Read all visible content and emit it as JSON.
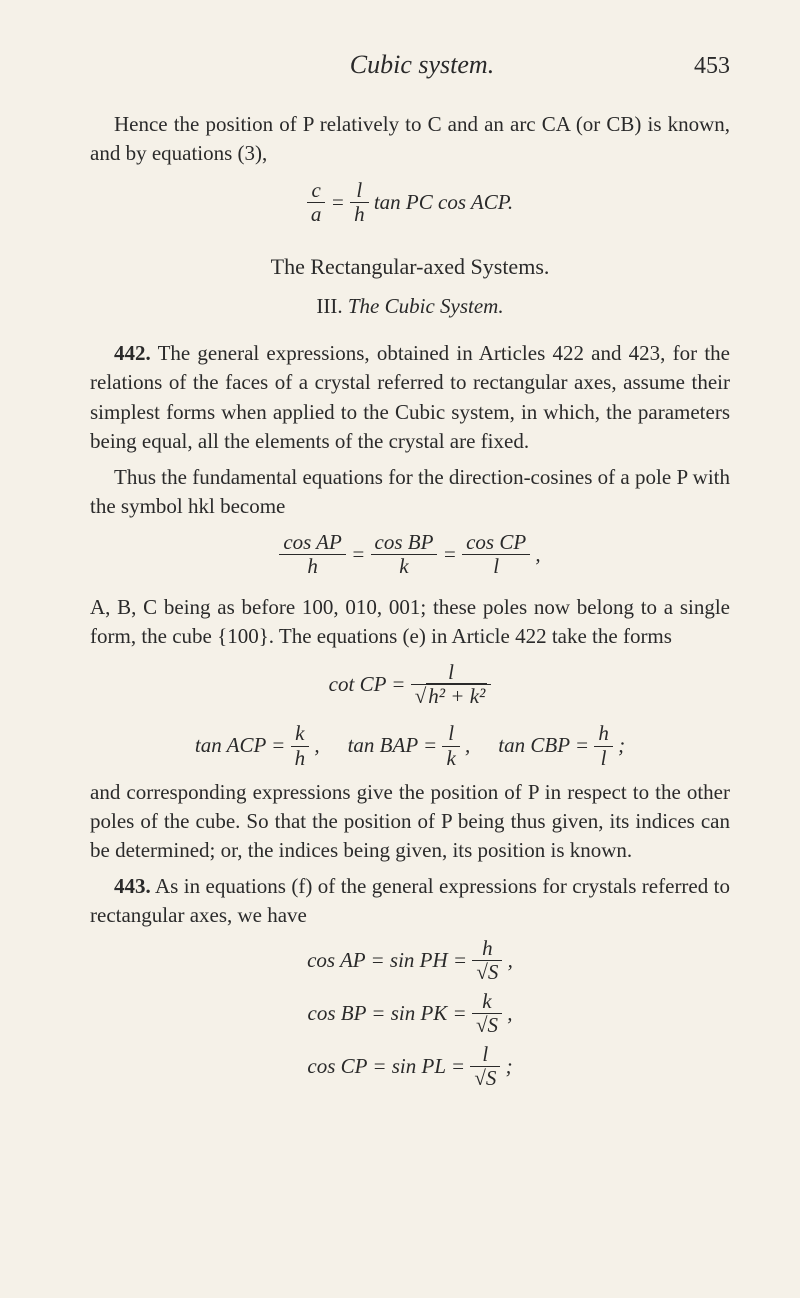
{
  "header": {
    "running_title": "Cubic system.",
    "page_number": "453"
  },
  "p1": "Hence the position of P relatively to C and an arc CA (or CB) is known, and by equations (3),",
  "eq1": {
    "lhs_num": "c",
    "lhs_den": "a",
    "rhs_num": "l",
    "rhs_den": "h",
    "tail": " tan PC cos ACP."
  },
  "section_title": "The Rectangular-axed Systems.",
  "subsection_prefix": "III. ",
  "subsection_ital": "The Cubic System.",
  "p442a_num": "442.",
  "p442a": " The general expressions, obtained in Articles 422 and 423, for the relations of the faces of a crystal referred to rectangular axes, assume their simplest forms when applied to the Cubic system, in which, the parameters being equal, all the elements of the crystal are fixed.",
  "p442b": "Thus the fundamental equations for the direction-cosines of a pole P with the symbol hkl become",
  "eq2": {
    "t1_num": "cos AP",
    "t1_den": "h",
    "t2_num": "cos BP",
    "t2_den": "k",
    "t3_num": "cos CP",
    "t3_den": "l"
  },
  "p442c": "A, B, C being as before 100, 010, 001; these poles now belong to a single form, the cube {100}. The equations (e) in Article 422 take the forms",
  "eq3": {
    "label": "cot CP = ",
    "num": "l",
    "den_pre": "√",
    "den": "h² + k²"
  },
  "eq4": {
    "a_lab": "tan ACP = ",
    "a_num": "k",
    "a_den": "h",
    "b_lab": "tan BAP = ",
    "b_num": "l",
    "b_den": "k",
    "c_lab": "tan CBP = ",
    "c_num": "h",
    "c_den": "l"
  },
  "p442d": "and corresponding expressions give the position of P in respect to the other poles of the cube. So that the position of P being thus given, its indices can be determined; or, the indices being given, its position is known.",
  "p443_num": "443.",
  "p443": " As in equations (f) of the general expressions for crystals referred to rectangular axes, we have",
  "eq5": {
    "a_lab": "cos AP = sin PH = ",
    "a_num": "h",
    "a_den": "√S",
    "b_lab": "cos BP = sin PK = ",
    "b_num": "k",
    "b_den": "√S",
    "c_lab": "cos CP = sin PL = ",
    "c_num": "l",
    "c_den": "√S"
  }
}
